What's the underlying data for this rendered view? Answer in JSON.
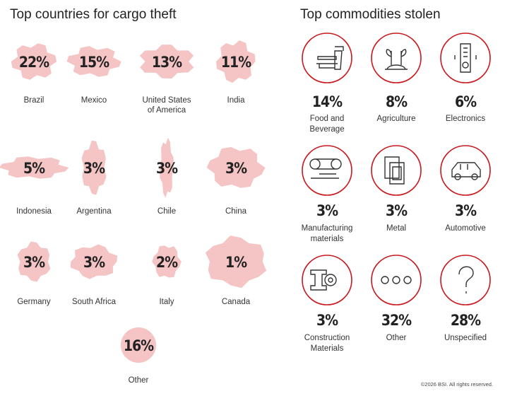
{
  "countries": {
    "title": "Top countries for cargo theft",
    "items": [
      {
        "label": "22%",
        "name": [
          "Brazil"
        ]
      },
      {
        "label": "15%",
        "name": [
          "Mexico"
        ]
      },
      {
        "label": "13%",
        "name": [
          "United States",
          "of America"
        ]
      },
      {
        "label": "11%",
        "name": [
          "India"
        ]
      },
      {
        "label": "5%",
        "name": [
          "Indonesia"
        ]
      },
      {
        "label": "3%",
        "name": [
          "Argentina"
        ]
      },
      {
        "label": "3%",
        "name": [
          "Chile"
        ]
      },
      {
        "label": "3%",
        "name": [
          "China"
        ]
      },
      {
        "label": "3%",
        "name": [
          "Germany"
        ]
      },
      {
        "label": "3%",
        "name": [
          "South Africa"
        ]
      },
      {
        "label": "2%",
        "name": [
          "Italy"
        ]
      },
      {
        "label": "1%",
        "name": [
          "Canada"
        ]
      },
      {
        "label": "16%",
        "name": [
          "Other"
        ]
      }
    ]
  },
  "commodities": {
    "title": "Top commodities stolen",
    "items": [
      {
        "label": "14%",
        "name": [
          "Food and",
          "Beverage"
        ]
      },
      {
        "label": "8%",
        "name": [
          "Agriculture"
        ]
      },
      {
        "label": "6%",
        "name": [
          "Electronics"
        ]
      },
      {
        "label": "3%",
        "name": [
          "Manufacturing",
          "materials"
        ]
      },
      {
        "label": "3%",
        "name": [
          "Metal"
        ]
      },
      {
        "label": "3%",
        "name": [
          "Automotive"
        ]
      },
      {
        "label": "3%",
        "name": [
          "Construction",
          "Materials"
        ]
      },
      {
        "label": "32%",
        "name": [
          "Other"
        ]
      },
      {
        "label": "28%",
        "name": [
          "Unspecified"
        ]
      }
    ]
  },
  "footer": "©2026 BSI. All rights reserved."
}
